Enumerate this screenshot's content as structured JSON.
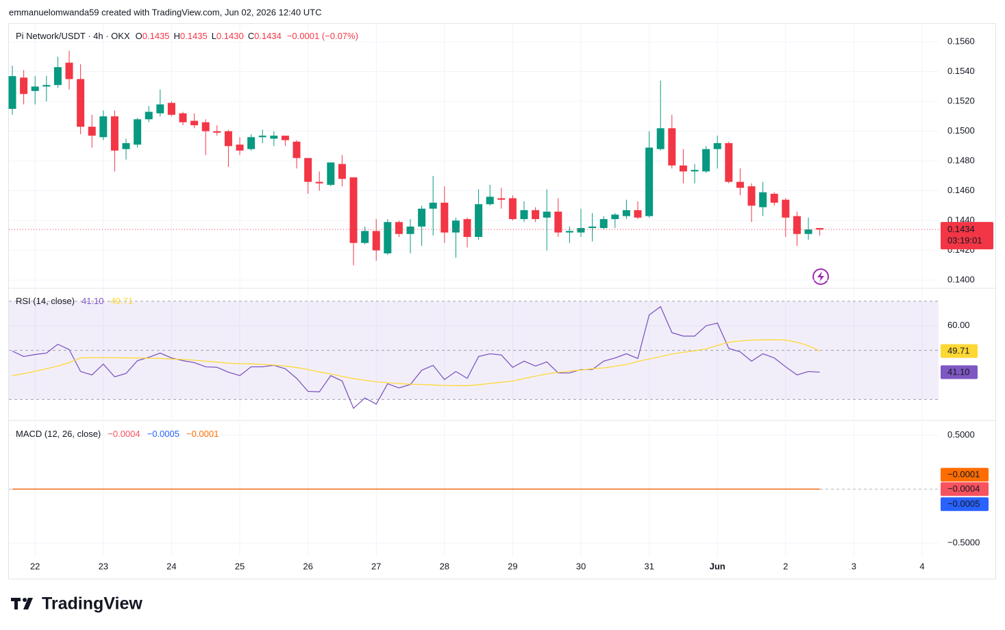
{
  "header": {
    "attribution": "emmanuelomwanda59 created with TradingView.com, Jun 02, 2026 12:40 UTC",
    "logo": "TradingView"
  },
  "chart_data": {
    "type": "candlestick",
    "title": "Pi Network/USDT · 4h · OKX",
    "ohlc_legend": [
      {
        "key": "O",
        "label": "0.1435"
      },
      {
        "key": "H",
        "label": "0.1435"
      },
      {
        "key": "L",
        "label": "0.1430"
      },
      {
        "key": "C",
        "label": "0.1434"
      }
    ],
    "change_label": "−0.0001 (−0.07%)",
    "categories": [
      null,
      null,
      "22",
      null,
      null,
      null,
      null,
      null,
      "23",
      null,
      null,
      null,
      null,
      null,
      "24",
      null,
      null,
      null,
      null,
      null,
      "25",
      null,
      null,
      null,
      null,
      null,
      "26",
      null,
      null,
      null,
      null,
      null,
      "27",
      null,
      null,
      null,
      null,
      null,
      "28",
      null,
      null,
      null,
      null,
      null,
      "29",
      null,
      null,
      null,
      null,
      null,
      "30",
      null,
      null,
      null,
      null,
      null,
      "31",
      null,
      null,
      null,
      null,
      null,
      "Jun",
      null,
      null,
      null,
      null,
      null,
      "2",
      null,
      null,
      null,
      null,
      null,
      "3",
      null,
      null,
      null,
      null,
      null,
      "4"
    ],
    "open": [
      0.1515,
      0.1536,
      0.1527,
      0.153,
      0.1531,
      0.1546,
      0.1535,
      0.1503,
      0.1496,
      0.151,
      0.1488,
      0.1491,
      0.1508,
      0.1512,
      0.1519,
      0.1512,
      0.1507,
      0.1506,
      0.15,
      0.15,
      0.1491,
      0.1488,
      0.1496,
      0.1495,
      0.1497,
      0.1493,
      0.1482,
      0.1466,
      0.1464,
      0.1478,
      0.1469,
      0.1425,
      0.1433,
      0.1418,
      0.1439,
      0.1431,
      0.1436,
      0.1448,
      0.1452,
      0.1432,
      0.1441,
      0.1429,
      0.1451,
      0.1455,
      0.1455,
      0.1441,
      0.1447,
      0.1442,
      0.1446,
      0.1432,
      0.1432,
      0.1435,
      0.1435,
      0.1441,
      0.1443,
      0.1447,
      0.1443,
      0.1488,
      0.1502,
      0.1477,
      0.1473,
      0.1473,
      0.1488,
      0.1492,
      0.1466,
      0.1463,
      0.1449,
      0.1458,
      0.1454,
      0.1443,
      0.1431,
      0.1435,
      null,
      null,
      null,
      null,
      null,
      null,
      null,
      null,
      null
    ],
    "high": [
      0.1544,
      0.1541,
      0.1537,
      0.1537,
      0.155,
      0.1554,
      0.1545,
      0.1511,
      0.1514,
      0.1514,
      0.1495,
      0.1509,
      0.1517,
      0.1528,
      0.152,
      0.1513,
      0.1512,
      0.1508,
      0.1504,
      0.1501,
      0.1496,
      0.1498,
      0.1501,
      0.15,
      0.1497,
      0.1494,
      0.1482,
      0.1473,
      0.1479,
      0.1484,
      0.1469,
      0.1436,
      0.1441,
      0.1441,
      0.144,
      0.1441,
      0.145,
      0.147,
      0.1463,
      0.1442,
      0.1442,
      0.1461,
      0.1464,
      0.1462,
      0.1457,
      0.1453,
      0.1449,
      0.1461,
      0.1455,
      0.1436,
      0.1448,
      0.1445,
      0.1443,
      0.1445,
      0.1454,
      0.1453,
      0.15,
      0.1534,
      0.1511,
      0.1488,
      0.1478,
      0.149,
      0.1497,
      0.1493,
      0.1475,
      0.1465,
      0.1466,
      0.1459,
      0.1455,
      0.1446,
      0.1442,
      0.1435,
      null,
      null,
      null,
      null,
      null,
      null,
      null,
      null,
      null
    ],
    "low": [
      0.1511,
      0.1518,
      0.1518,
      0.152,
      0.1529,
      0.1528,
      0.1498,
      0.1489,
      0.1494,
      0.1473,
      0.1481,
      0.1489,
      0.1506,
      0.151,
      0.151,
      0.1504,
      0.1502,
      0.1484,
      0.1497,
      0.1476,
      0.1484,
      0.1487,
      0.1492,
      0.149,
      0.149,
      0.1475,
      0.1458,
      0.146,
      0.1463,
      0.1463,
      0.141,
      0.1424,
      0.1413,
      0.1417,
      0.1429,
      0.1418,
      0.1423,
      0.143,
      0.1425,
      0.1415,
      0.1422,
      0.1427,
      0.145,
      0.1448,
      0.144,
      0.1439,
      0.1439,
      0.142,
      0.1429,
      0.1425,
      0.1429,
      0.1426,
      0.1434,
      0.1435,
      0.1441,
      0.1441,
      0.1442,
      0.1487,
      0.1475,
      0.1465,
      0.1465,
      0.1472,
      0.1475,
      0.1465,
      0.1457,
      0.1439,
      0.1443,
      0.145,
      0.1429,
      0.1423,
      0.1427,
      0.143,
      null,
      null,
      null,
      null,
      null,
      null,
      null,
      null,
      null
    ],
    "close": [
      0.1537,
      0.1525,
      0.153,
      0.1531,
      0.1543,
      0.1535,
      0.1503,
      0.1497,
      0.151,
      0.1487,
      0.1492,
      0.1508,
      0.1513,
      0.1518,
      0.1511,
      0.1506,
      0.1504,
      0.15,
      0.1499,
      0.149,
      0.1487,
      0.1496,
      0.1497,
      0.1497,
      0.1494,
      0.1482,
      0.1466,
      0.1465,
      0.1479,
      0.1468,
      0.1425,
      0.1433,
      0.142,
      0.1439,
      0.1431,
      0.1436,
      0.1448,
      0.1452,
      0.1432,
      0.144,
      0.1429,
      0.1451,
      0.1456,
      0.1454,
      0.1441,
      0.1447,
      0.1441,
      0.1446,
      0.1432,
      0.1433,
      0.1435,
      0.1436,
      0.1441,
      0.1444,
      0.1447,
      0.1442,
      0.1489,
      0.1502,
      0.1477,
      0.1473,
      0.1474,
      0.1488,
      0.1492,
      0.1466,
      0.1462,
      0.145,
      0.1459,
      0.1452,
      0.1442,
      0.1431,
      0.1434,
      0.1434,
      null,
      null,
      null,
      null,
      null,
      null,
      null,
      null,
      null
    ],
    "up_color": "#089981",
    "down_color": "#f23645",
    "ylim": [
      0.1395,
      0.1572
    ],
    "yticks": [
      {
        "value": 0.156,
        "label": "0.1560"
      },
      {
        "value": 0.154,
        "label": "0.1540"
      },
      {
        "value": 0.152,
        "label": "0.1520"
      },
      {
        "value": 0.15,
        "label": "0.1500"
      },
      {
        "value": 0.148,
        "label": "0.1480"
      },
      {
        "value": 0.146,
        "label": "0.1460"
      },
      {
        "value": 0.144,
        "label": "0.1440"
      },
      {
        "value": 0.142,
        "label": "0.1420"
      },
      {
        "value": 0.14,
        "label": "0.1400"
      }
    ],
    "last_price_label": "0.1434",
    "countdown": "03:19:01",
    "grid": true,
    "indicators": [
      {
        "type": "line",
        "title": "RSI (14, close)",
        "ylim": [
          22,
          75
        ],
        "yticks": [
          {
            "value": 60,
            "label": "60.00"
          }
        ],
        "bands": [
          70,
          50,
          30
        ],
        "band_color": "#7e57c2",
        "series": [
          {
            "color": "#7e57c2",
            "last_label": "41.10",
            "values": [
              49.7,
              47.5,
              48.3,
              48.9,
              52.5,
              50.3,
              41.4,
              40.0,
              44.4,
              39.2,
              40.6,
              45.8,
              47.2,
              48.9,
              46.9,
              45.8,
              45.0,
              43.3,
              43.1,
              41.1,
              39.7,
              43.3,
              43.3,
              43.9,
              42.5,
              38.6,
              33.3,
              33.1,
              39.7,
              37.5,
              26.4,
              30.6,
              28.1,
              36.4,
              34.7,
              36.1,
              41.9,
              43.9,
              38.1,
              41.4,
              38.6,
              47.5,
              48.6,
              48.1,
              43.1,
              45.6,
              43.6,
              45.3,
              40.8,
              40.8,
              42.2,
              42.2,
              45.6,
              46.9,
              48.6,
              46.7,
              64.4,
              67.8,
              57.2,
              55.8,
              55.8,
              60.0,
              61.1,
              50.8,
              49.4,
              45.6,
              48.6,
              46.9,
              43.3,
              40.0,
              41.4,
              41.1,
              null,
              null,
              null,
              null,
              null,
              null,
              null,
              null,
              null
            ]
          },
          {
            "color": "#fdd835",
            "last_label": "49.71",
            "values": [
              39.7,
              40.5,
              41.5,
              42.5,
              43.6,
              45.0,
              46.9,
              47.0,
              47.0,
              47.0,
              46.9,
              46.9,
              46.8,
              46.7,
              46.5,
              46.3,
              46.0,
              45.6,
              45.2,
              44.8,
              44.6,
              44.5,
              44.3,
              44.0,
              43.6,
              43.0,
              42.2,
              41.2,
              40.4,
              39.4,
              38.5,
              37.8,
              37.2,
              36.8,
              36.5,
              36.2,
              36.1,
              35.9,
              35.7,
              35.6,
              35.6,
              36.0,
              36.5,
              37.0,
              37.5,
              38.5,
              39.5,
              40.4,
              41.0,
              41.5,
              42.0,
              42.5,
              42.8,
              43.5,
              44.2,
              45.5,
              46.5,
              47.5,
              48.5,
              49.2,
              49.8,
              50.6,
              52.0,
              53.3,
              53.8,
              54.2,
              54.3,
              54.3,
              54.2,
              53.3,
              51.9,
              49.71,
              null,
              null,
              null,
              null,
              null,
              null,
              null,
              null,
              null
            ]
          }
        ]
      },
      {
        "type": "macd",
        "title": "MACD (12, 26, close)",
        "ylim": [
          -0.62,
          0.61
        ],
        "yticks": [
          {
            "value": 0.5,
            "label": "0.5000"
          },
          {
            "value": -0.5,
            "label": "−0.5000"
          }
        ],
        "zero_line": true,
        "series": [
          {
            "kind": "histogram",
            "color": "#f7525f",
            "last_label": "−0.0004",
            "values": [
              0,
              0,
              0,
              0,
              0,
              0,
              0,
              0,
              0,
              0,
              0,
              0,
              0,
              0,
              0,
              0,
              0,
              0,
              0,
              0,
              0,
              0,
              0,
              0,
              0,
              0,
              0,
              0,
              0,
              0,
              0,
              0,
              0,
              0,
              0,
              0,
              0,
              0,
              0,
              0,
              0,
              0,
              0,
              0,
              0,
              0,
              0,
              0,
              0,
              0,
              0,
              0,
              0,
              0,
              0,
              0,
              0,
              0,
              0,
              0,
              0,
              0,
              0,
              0,
              0,
              0,
              0,
              0,
              0,
              0,
              0,
              -0.0004,
              null,
              null,
              null,
              null,
              null,
              null,
              null,
              null,
              null
            ]
          },
          {
            "kind": "line",
            "color": "#2962ff",
            "last_label": "−0.0005",
            "values": [
              0,
              0,
              0,
              0,
              0,
              0,
              0,
              0,
              0,
              0,
              0,
              0,
              0,
              0,
              0,
              0,
              0,
              0,
              0,
              0,
              0,
              0,
              0,
              0,
              0,
              0,
              0,
              0,
              0,
              0,
              0,
              0,
              0,
              0,
              0,
              0,
              0,
              0,
              0,
              0,
              0,
              0,
              0,
              0,
              0,
              0,
              0,
              0,
              0,
              0,
              0,
              0,
              0,
              0,
              0,
              0,
              0,
              0,
              0,
              0,
              0,
              0,
              0,
              0,
              0,
              0,
              0,
              0,
              0,
              0,
              0,
              -0.0005,
              null,
              null,
              null,
              null,
              null,
              null,
              null,
              null,
              null
            ]
          },
          {
            "kind": "line",
            "color": "#ff6d00",
            "last_label": "−0.0001",
            "values": [
              0,
              0,
              0,
              0,
              0,
              0,
              0,
              0,
              0,
              0,
              0,
              0,
              0,
              0,
              0,
              0,
              0,
              0,
              0,
              0,
              0,
              0,
              0,
              0,
              0,
              0,
              0,
              0,
              0,
              0,
              0,
              0,
              0,
              0,
              0,
              0,
              0,
              0,
              0,
              0,
              0,
              0,
              0,
              0,
              0,
              0,
              0,
              0,
              0,
              0,
              0,
              0,
              0,
              0,
              0,
              0,
              0,
              0,
              0,
              0,
              0,
              0,
              0,
              0,
              0,
              0,
              0,
              0,
              0,
              0,
              0,
              -0.0001,
              null,
              null,
              null,
              null,
              null,
              null,
              null,
              null,
              null
            ]
          }
        ]
      }
    ]
  }
}
